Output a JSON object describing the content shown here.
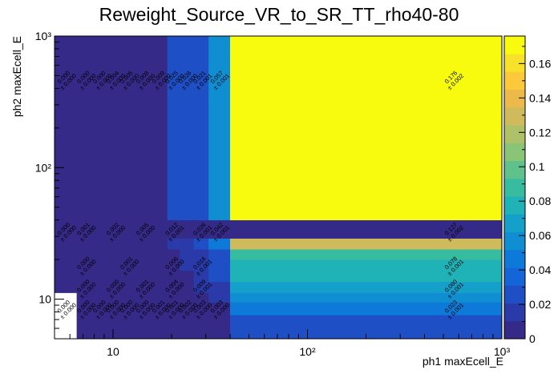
{
  "chart_data": {
    "type": "heatmap",
    "title": "Reweight_Source_VR_to_SR_TT_rho40-80",
    "xlabel": "ph1 maxEcell_E",
    "ylabel": "ph2 maxEcell_E",
    "x_scale": "log",
    "y_scale": "log",
    "xlim": [
      5,
      1000
    ],
    "ylim": [
      5,
      1000
    ],
    "x_edges": [
      5,
      6.5,
      8,
      9.5,
      11,
      13,
      16,
      19,
      22,
      26,
      31,
      40,
      1000
    ],
    "y_edges": [
      5,
      7.6,
      9.5,
      11.2,
      13.6,
      16.5,
      20,
      24,
      29,
      40,
      1000
    ],
    "x_ticks": [
      {
        "value": 10,
        "label": "10"
      },
      {
        "value": 100,
        "label": "10²"
      },
      {
        "value": 1000,
        "label": "10³"
      }
    ],
    "y_ticks": [
      {
        "value": 10,
        "label": "10"
      },
      {
        "value": 100,
        "label": "10²"
      },
      {
        "value": 1000,
        "label": "10³"
      }
    ],
    "values": [
      [
        null,
        0.0,
        0.0,
        0.0,
        0.0,
        0.0,
        0.0,
        0.001,
        0.001,
        0.002,
        0.003,
        0.023
      ],
      [
        null,
        0.0,
        0.0,
        0.0,
        0.0,
        0.0,
        0.001,
        0.002,
        0.003,
        0.005,
        0.009,
        0.048
      ],
      [
        null,
        0.0,
        0.0,
        0.0,
        0.001,
        0.001,
        0.002,
        0.004,
        0.006,
        0.009,
        0.014,
        0.06
      ],
      [
        0.0,
        0.0,
        0.0,
        0.001,
        0.001,
        0.002,
        0.003,
        0.005,
        0.008,
        0.012,
        0.018,
        0.069
      ],
      [
        0.0,
        0.0,
        0.0,
        0.001,
        0.001,
        0.002,
        0.004,
        0.006,
        0.009,
        0.014,
        0.021,
        0.073
      ],
      [
        0.0,
        0.0,
        0.001,
        0.001,
        0.002,
        0.003,
        0.005,
        0.008,
        0.011,
        0.016,
        0.024,
        0.078
      ],
      [
        0.0,
        0.0,
        0.001,
        0.001,
        0.002,
        0.003,
        0.006,
        0.009,
        0.013,
        0.019,
        0.028,
        0.09
      ],
      [
        0.0,
        0.001,
        0.001,
        0.002,
        0.003,
        0.005,
        0.008,
        0.012,
        0.018,
        0.026,
        0.042,
        0.127
      ],
      [
        0.0,
        0.0,
        0.0,
        0.0,
        0.0,
        0.0,
        0.0,
        0.0,
        0.0,
        0.0,
        0.0,
        0.0
      ],
      [
        0.0,
        0.0,
        0.0,
        0.004,
        0.005,
        0.008,
        0.009,
        0.025,
        0.026,
        0.021,
        0.057,
        0.176
      ]
    ],
    "errors_text": "± 0.000",
    "cell_labels": [
      {
        "x": 5.7,
        "y": 8.5,
        "value": "0.000",
        "error": "± 0.000"
      },
      {
        "x": 7.2,
        "y": 8.5,
        "value": "0.000",
        "error": "± 0.000"
      },
      {
        "x": 8.7,
        "y": 8.5,
        "value": "0.000",
        "error": "± 0.000"
      },
      {
        "x": 10.2,
        "y": 8.5,
        "value": "0.000",
        "error": "± 0.000"
      },
      {
        "x": 12,
        "y": 8.5,
        "value": "0.000",
        "error": "± 0.000"
      },
      {
        "x": 14.5,
        "y": 8.5,
        "value": "0.000",
        "error": "± 0.000"
      },
      {
        "x": 17.5,
        "y": 8.5,
        "value": "0.001",
        "error": "± 0.000"
      },
      {
        "x": 20.5,
        "y": 8.5,
        "value": "0.001",
        "error": "± 0.000"
      },
      {
        "x": 24,
        "y": 8.5,
        "value": "0.002",
        "error": "± 0.000"
      },
      {
        "x": 28.5,
        "y": 8.5,
        "value": "0.003",
        "error": "± 0.000"
      },
      {
        "x": 35,
        "y": 8.5,
        "value": "0.003",
        "error": "± 0.000"
      },
      {
        "x": 560,
        "y": 8.5,
        "value": "0.023",
        "error": "± 0.001"
      },
      {
        "x": 7.2,
        "y": 12.2,
        "value": "0.000",
        "error": "± 0.000"
      },
      {
        "x": 10.2,
        "y": 12.2,
        "value": "0.000",
        "error": "± 0.000"
      },
      {
        "x": 14.5,
        "y": 12.2,
        "value": "0.001",
        "error": "± 0.000"
      },
      {
        "x": 20.5,
        "y": 12.2,
        "value": "0.004",
        "error": "± 0.000"
      },
      {
        "x": 28.5,
        "y": 12.2,
        "value": "0.009",
        "error": "± 0.001"
      },
      {
        "x": 560,
        "y": 12.2,
        "value": "0.060",
        "error": "± 0.001"
      },
      {
        "x": 7.2,
        "y": 18.2,
        "value": "0.000",
        "error": "± 0.000"
      },
      {
        "x": 12,
        "y": 18.2,
        "value": "0.001",
        "error": "± 0.000"
      },
      {
        "x": 20.5,
        "y": 18.2,
        "value": "0.006",
        "error": "± 0.000"
      },
      {
        "x": 28.5,
        "y": 18.2,
        "value": "0.016",
        "error": "± 0.001"
      },
      {
        "x": 560,
        "y": 18.2,
        "value": "0.078",
        "error": "± 0.001"
      },
      {
        "x": 5.7,
        "y": 33,
        "value": "0.000",
        "error": "± 0.000"
      },
      {
        "x": 7.2,
        "y": 33,
        "value": "0.001",
        "error": "± 0.000"
      },
      {
        "x": 10.2,
        "y": 33,
        "value": "0.002",
        "error": "± 0.000"
      },
      {
        "x": 14.5,
        "y": 33,
        "value": "0.005",
        "error": "± 0.000"
      },
      {
        "x": 20.5,
        "y": 33,
        "value": "0.012",
        "error": "± 0.001"
      },
      {
        "x": 28.5,
        "y": 33,
        "value": "0.026",
        "error": "± 0.001"
      },
      {
        "x": 35,
        "y": 33,
        "value": "0.042",
        "error": "± 0.001"
      },
      {
        "x": 560,
        "y": 33,
        "value": "0.127",
        "error": "± 0.002"
      },
      {
        "x": 5.7,
        "y": 470,
        "value": "0.000",
        "error": "± 0.000"
      },
      {
        "x": 7.2,
        "y": 470,
        "value": "0.000",
        "error": "± 0.000"
      },
      {
        "x": 8.7,
        "y": 470,
        "value": "0.000",
        "error": "± 0.000"
      },
      {
        "x": 10.2,
        "y": 470,
        "value": "0.004",
        "error": "± 0.000"
      },
      {
        "x": 12,
        "y": 470,
        "value": "0.005",
        "error": "± 0.000"
      },
      {
        "x": 14.5,
        "y": 470,
        "value": "0.008",
        "error": "± 0.000"
      },
      {
        "x": 17.5,
        "y": 470,
        "value": "0.009",
        "error": "± 0.000"
      },
      {
        "x": 20.5,
        "y": 470,
        "value": "0.025",
        "error": "± 0.000"
      },
      {
        "x": 24,
        "y": 470,
        "value": "0.026",
        "error": "± 0.000"
      },
      {
        "x": 28.5,
        "y": 470,
        "value": "0.021",
        "error": "± 0.001"
      },
      {
        "x": 35,
        "y": 470,
        "value": "0.057",
        "error": "± 0.001"
      },
      {
        "x": 560,
        "y": 470,
        "value": "0.176",
        "error": "± 0.002"
      }
    ],
    "colorbar": {
      "range": [
        0,
        0.176
      ],
      "ticks": [
        {
          "value": 0,
          "label": "0"
        },
        {
          "value": 0.02,
          "label": "0.02"
        },
        {
          "value": 0.04,
          "label": "0.04"
        },
        {
          "value": 0.06,
          "label": "0.06"
        },
        {
          "value": 0.08,
          "label": "0.08"
        },
        {
          "value": 0.1,
          "label": "0.1"
        },
        {
          "value": 0.12,
          "label": "0.12"
        },
        {
          "value": 0.14,
          "label": "0.14"
        },
        {
          "value": 0.16,
          "label": "0.16"
        }
      ],
      "colors": [
        "#352a87",
        "#2a3aa8",
        "#1f4fc5",
        "#1466d8",
        "#0d7ad9",
        "#0f8ed2",
        "#14a0c8",
        "#1fb2b6",
        "#38bca0",
        "#5fc28a",
        "#89c477",
        "#afc168",
        "#cfbb5c",
        "#ebba4a",
        "#fbc93a",
        "#f8e12a",
        "#f9fb0e"
      ]
    },
    "grid": false,
    "legend": "none"
  }
}
